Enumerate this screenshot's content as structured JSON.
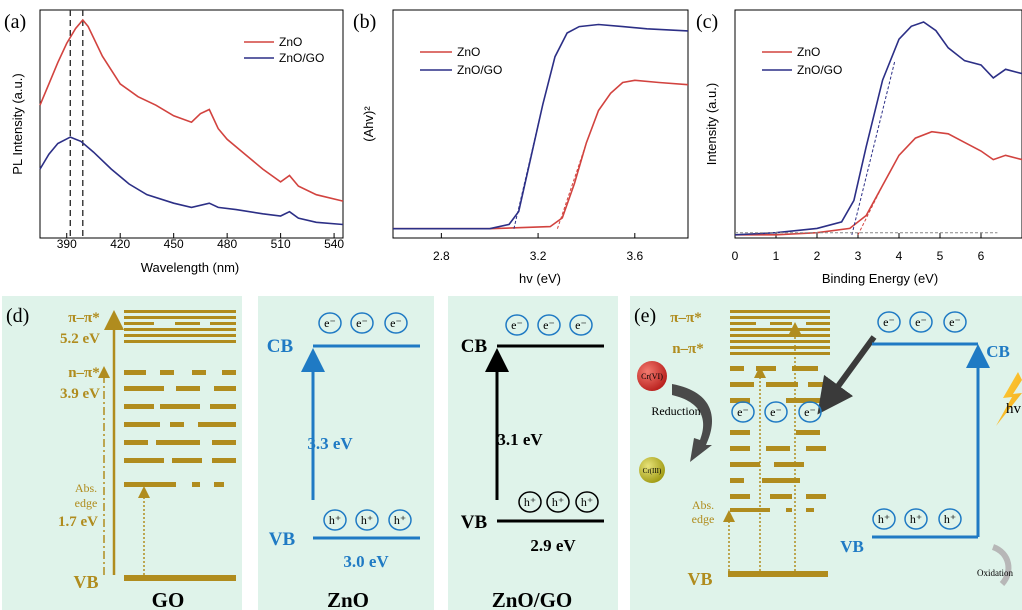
{
  "colors": {
    "zno": "#d2433f",
    "zno_go": "#2c2f86",
    "gold": "#b08c1e",
    "blue": "#1f7ac4",
    "panel_bg": "#dff3ea",
    "dashed": "#333333",
    "red_ball": "#d8322e",
    "yellow_ball": "#c9c023"
  },
  "chart_data": [
    {
      "panel": "(a)",
      "type": "line",
      "xlabel": "Wavelength (nm)",
      "ylabel": "PL Intensity (a.u.)",
      "xlim": [
        375,
        545
      ],
      "ylim": [
        0,
        1
      ],
      "xticks": [
        390,
        420,
        450,
        480,
        510,
        540
      ],
      "vlines": [
        392,
        399
      ],
      "legend_position": "top-right",
      "series": [
        {
          "name": "ZnO",
          "color": "#d2433f",
          "x": [
            375,
            380,
            385,
            390,
            395,
            399,
            402,
            410,
            420,
            430,
            440,
            450,
            460,
            465,
            470,
            475,
            480,
            490,
            500,
            510,
            515,
            520,
            530,
            545
          ],
          "y": [
            0.6,
            0.7,
            0.8,
            0.89,
            0.96,
            1.0,
            0.97,
            0.83,
            0.7,
            0.64,
            0.6,
            0.55,
            0.52,
            0.56,
            0.58,
            0.49,
            0.44,
            0.37,
            0.3,
            0.24,
            0.27,
            0.22,
            0.18,
            0.15
          ]
        },
        {
          "name": "ZnO/GO",
          "color": "#2c2f86",
          "x": [
            375,
            380,
            385,
            392,
            398,
            405,
            415,
            425,
            435,
            450,
            460,
            470,
            475,
            485,
            500,
            510,
            515,
            520,
            530,
            545
          ],
          "y": [
            0.3,
            0.37,
            0.42,
            0.45,
            0.43,
            0.38,
            0.3,
            0.23,
            0.18,
            0.14,
            0.12,
            0.14,
            0.12,
            0.11,
            0.09,
            0.08,
            0.1,
            0.07,
            0.05,
            0.04
          ]
        }
      ]
    },
    {
      "panel": "(b)",
      "type": "line",
      "xlabel": "hv (eV)",
      "ylabel": "(Ahv)²",
      "xlim": [
        2.6,
        3.82
      ],
      "ylim": [
        0,
        1
      ],
      "xticks": [
        2.8,
        3.2,
        3.6
      ],
      "legend_position": "top-left",
      "series": [
        {
          "name": "ZnO",
          "color": "#d2433f",
          "x": [
            2.6,
            3.0,
            3.25,
            3.3,
            3.35,
            3.4,
            3.45,
            3.5,
            3.55,
            3.6,
            3.7,
            3.82
          ],
          "y": [
            0.02,
            0.02,
            0.03,
            0.07,
            0.23,
            0.42,
            0.57,
            0.65,
            0.7,
            0.71,
            0.7,
            0.69
          ]
        },
        {
          "name": "ZnO/GO",
          "color": "#2c2f86",
          "x": [
            2.6,
            3.0,
            3.08,
            3.12,
            3.17,
            3.22,
            3.27,
            3.32,
            3.37,
            3.45,
            3.55,
            3.65,
            3.82
          ],
          "y": [
            0.02,
            0.02,
            0.04,
            0.1,
            0.35,
            0.6,
            0.82,
            0.93,
            0.96,
            0.97,
            0.96,
            0.95,
            0.94
          ]
        }
      ]
    },
    {
      "panel": "(c)",
      "type": "line",
      "xlabel": "Binding Energy (eV)",
      "ylabel": "Intensity (a.u.)",
      "xlim": [
        0,
        7
      ],
      "ylim": [
        0,
        1
      ],
      "xticks": [
        0,
        1,
        2,
        3,
        4,
        5,
        6
      ],
      "legend_position": "top-left",
      "series": [
        {
          "name": "ZnO",
          "color": "#d2433f",
          "x": [
            0,
            1,
            2,
            2.8,
            3.2,
            3.6,
            4.0,
            4.4,
            4.8,
            5.2,
            5.6,
            6.0,
            6.3,
            6.6,
            7.0
          ],
          "y": [
            0.01,
            0.01,
            0.02,
            0.04,
            0.1,
            0.24,
            0.38,
            0.46,
            0.49,
            0.48,
            0.44,
            0.4,
            0.36,
            0.38,
            0.36
          ]
        },
        {
          "name": "ZnO/GO",
          "color": "#2c2f86",
          "x": [
            0,
            1,
            2,
            2.6,
            2.9,
            3.2,
            3.6,
            4.0,
            4.3,
            4.6,
            4.9,
            5.2,
            5.6,
            6.0,
            6.3,
            6.6,
            7.0
          ],
          "y": [
            0.01,
            0.02,
            0.04,
            0.07,
            0.17,
            0.42,
            0.73,
            0.92,
            0.98,
            1.0,
            0.96,
            0.88,
            0.82,
            0.8,
            0.74,
            0.78,
            0.76
          ]
        }
      ]
    }
  ],
  "panel_d": {
    "label": "(d)",
    "go": {
      "caption": "GO",
      "pi_pi": "π–π*",
      "gap_52": "5.2 eV",
      "n_pi": "n–π*",
      "gap_39": "3.9 eV",
      "abs_edge_1": "Abs.",
      "abs_edge_2": "edge",
      "gap_17": "1.7 eV",
      "vb": "VB"
    },
    "zno": {
      "caption": "ZnO",
      "cb": "CB",
      "vb": "VB",
      "gap": "3.3 eV",
      "vb_energy": "3.0 eV",
      "electron": "e⁻",
      "hole": "h⁺"
    },
    "znogo": {
      "caption": "ZnO/GO",
      "cb": "CB",
      "vb": "VB",
      "gap": "3.1 eV",
      "vb_energy": "2.9 eV",
      "electron": "e⁻",
      "hole": "h⁺"
    }
  },
  "panel_e": {
    "label": "(e)",
    "pi_pi": "π–π*",
    "n_pi": "n–π*",
    "cr6": "Cr(VI)",
    "cr3": "Cr(III)",
    "reduction": "Reduction",
    "abs_edge_1": "Abs.",
    "abs_edge_2": "edge",
    "vb_left": "VB",
    "cb": "CB",
    "vb_right": "VB",
    "hv": "hv",
    "oxidation": "Oxidation",
    "electron": "e⁻",
    "hole": "h⁺"
  }
}
